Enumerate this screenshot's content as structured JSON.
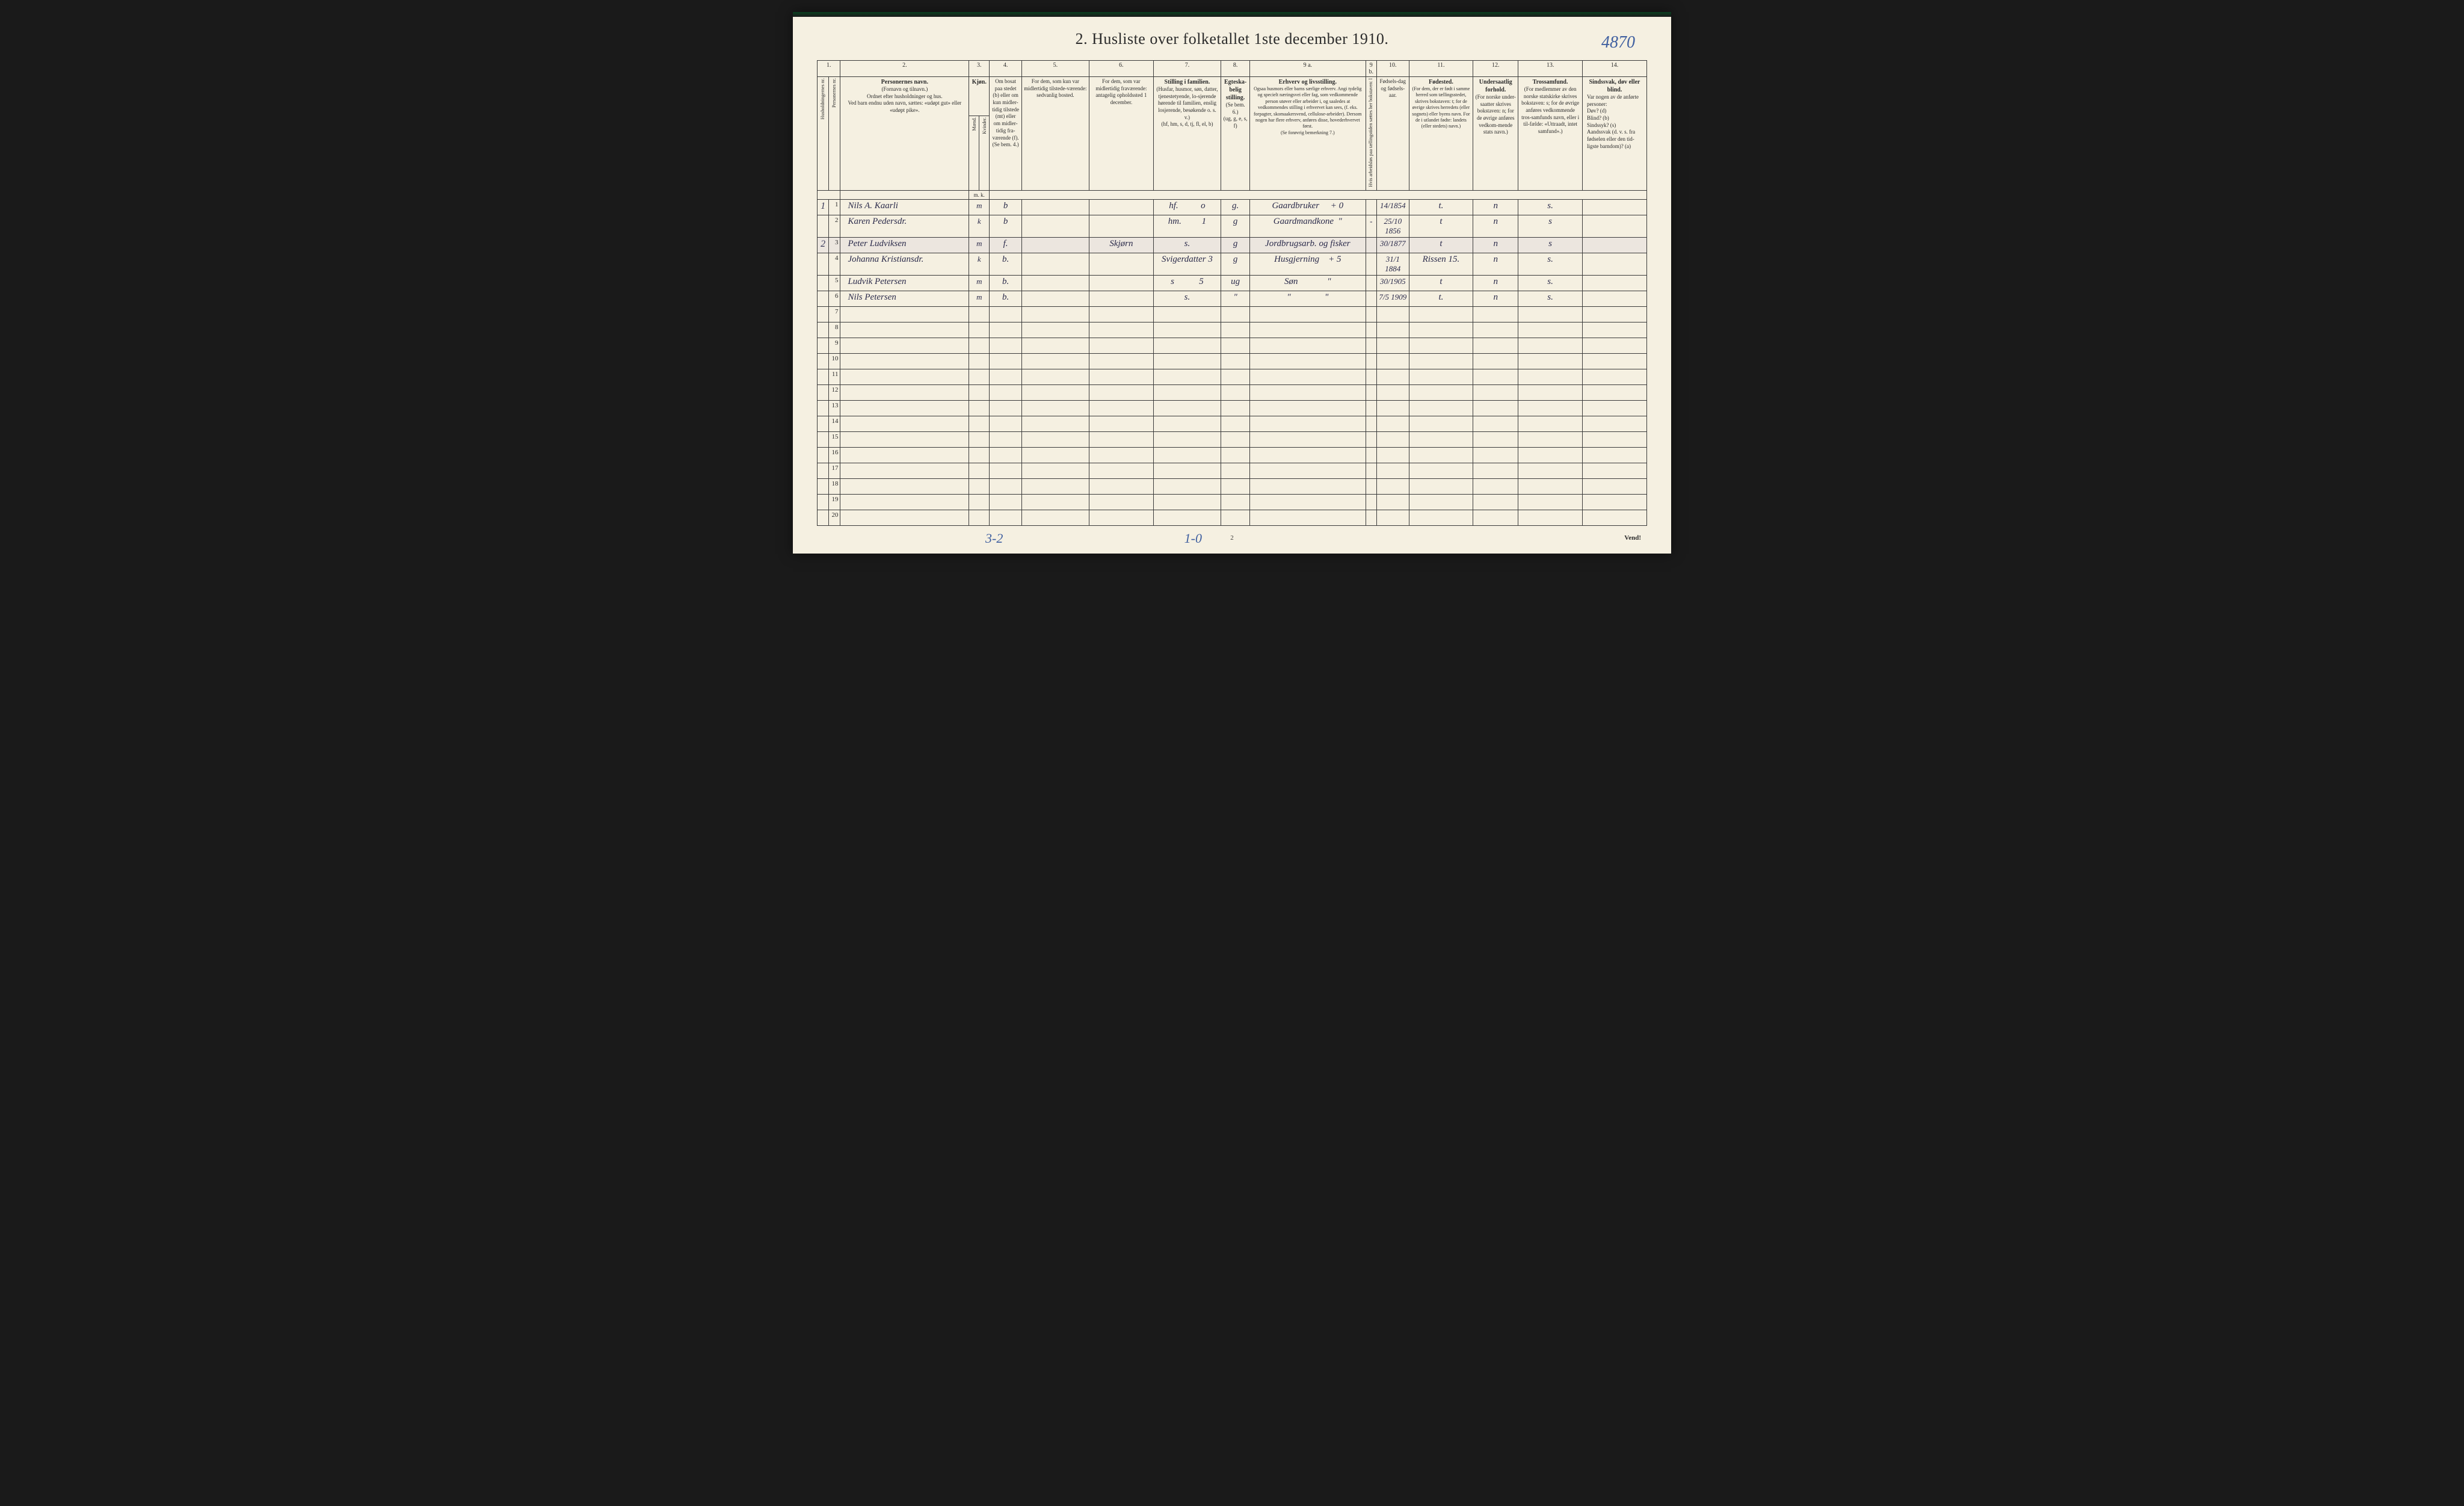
{
  "document": {
    "title": "2.  Husliste over folketallet 1ste december 1910.",
    "top_annotation": "4870",
    "page_number": "2",
    "vend_label": "Vend!",
    "bottom_left_annotation": "3-2",
    "bottom_center_annotation": "1-0"
  },
  "columns": {
    "nums": [
      "1.",
      "2.",
      "3.",
      "4.",
      "5.",
      "6.",
      "7.",
      "8.",
      "9 a.",
      "9 b.",
      "10.",
      "11.",
      "12.",
      "13.",
      "14."
    ],
    "col1_a": "Husholdningernes nr.",
    "col1_b": "Personernes nr.",
    "col2_main": "Personernes navn.",
    "col2_sub": "(Fornavn og tilnavn.)\nOrdnet efter husholdninger og hus.\nVed barn endnu uden navn, sættes: «udøpt gut» eller «udøpt pike».",
    "col3_main": "Kjøn.",
    "col3_a": "Mænd.",
    "col3_b": "Kvinder.",
    "col3_sub": "m.  k.",
    "col4": "Om bosat paa stedet (b) eller om kun midler-tidig tilstede (mt) eller om midler-tidig fra-værende (f).\n(Se bem. 4.)",
    "col5": "For dem, som kun var midlertidig tilstede-værende:\nsedvanlig bosted.",
    "col6": "For dem, som var midlertidig fraværende:\nantagelig opholdssted 1 december.",
    "col7_main": "Stilling i familien.",
    "col7_sub": "(Husfar, husmor, søn, datter, tjenestetyende, lo-sjerende hørende til familien, enslig losjerende, besøkende o. s. v.)\n(hf, hm, s, d, tj, fl, el, b)",
    "col8_main": "Egteska-belig stilling.",
    "col8_sub": "(Se bem. 6.)\n(ug, g, e, s, f)",
    "col9a_main": "Erhverv og livsstilling.",
    "col9a_sub": "Ogsaa husmors eller barns særlige erhverv. Angi tydelig og specielt næringsvei eller fag, som vedkommende person utøver eller arbeider i, og saaledes at vedkommendes stilling i erhvervet kan sees, (f. eks. forpagter, skomaakersvend, cellulose-arbeider). Dersom nogen har flere erhverv, anføres disse, hovederhvervet først.\n(Se forøvrig bemerkning 7.)",
    "col9b": "Hvis arbeidsløs paa tællingstiden sættes her bokstaven: l",
    "col10": "Fødsels-dag og fødsels-aar.",
    "col11_main": "Fødested.",
    "col11_sub": "(For dem, der er født i samme herred som tællingsstedet, skrives bokstaven: t; for de øvrige skrives herredets (eller sognets) eller byens navn. For de i utlandet fødte: landets (eller stedets) navn.)",
    "col12_main": "Undersaatlig forhold.",
    "col12_sub": "(For norske under-saatter skrives bokstaven: n; for de øvrige anføres vedkom-mende stats navn.)",
    "col13_main": "Trossamfund.",
    "col13_sub": "(For medlemmer av den norske statskirke skrives bokstaven: s; for de øvrige anføres vedkommende tros-samfunds navn, eller i til-fælde: «Uttraadt, intet samfund».)",
    "col14_main": "Sindssvak, døv eller blind.",
    "col14_sub": "Var nogen av de anførte personer:\nDøv?         (d)\nBlind?       (b)\nSindssyk?  (s)\nAandssvak (d. v. s. fra fødselen eller den tid-ligste barndom)? (a)"
  },
  "rows": [
    {
      "household": "1",
      "person": "1",
      "name": "Nils A. Kaarli",
      "sex": "m",
      "residence": "b",
      "temp_present": "",
      "temp_absent": "",
      "family_pos": "hf.          o",
      "marital": "g.",
      "occupation": "Gaardbruker     + 0",
      "unemployed": "",
      "birth": "14/1854",
      "birthplace": "t.",
      "nationality": "n",
      "religion": "s.",
      "disability": ""
    },
    {
      "household": "",
      "person": "2",
      "name": "Karen Pedersdr.",
      "sex": "k",
      "residence": "b",
      "temp_present": "",
      "temp_absent": "",
      "family_pos": "hm.         1",
      "marital": "g",
      "occupation": "Gaardmandkone  \"",
      "unemployed": "-",
      "birth": "25/10 1856",
      "birthplace": "t",
      "nationality": "n",
      "religion": "s",
      "disability": ""
    },
    {
      "household": "2",
      "person": "3",
      "name": "Peter Ludviksen",
      "sex": "m",
      "residence": "f.",
      "temp_present": "",
      "temp_absent": "Skjørn",
      "family_pos": "s.",
      "marital": "g",
      "occupation": "Jordbrugsarb. og fisker",
      "unemployed": "",
      "birth": "30/1877",
      "birthplace": "t",
      "nationality": "n",
      "religion": "s",
      "disability": ""
    },
    {
      "household": "",
      "person": "4",
      "name": "Johanna Kristiansdr.",
      "sex": "k",
      "residence": "b.",
      "temp_present": "",
      "temp_absent": "",
      "family_pos": "Svigerdatter 3",
      "marital": "g",
      "occupation": "Husgjerning    + 5",
      "unemployed": "",
      "birth": "31/1 1884",
      "birthplace": "Rissen 15.",
      "nationality": "n",
      "religion": "s.",
      "disability": ""
    },
    {
      "household": "",
      "person": "5",
      "name": "Ludvik Petersen",
      "sex": "m",
      "residence": "b.",
      "temp_present": "",
      "temp_absent": "",
      "family_pos": "s           5",
      "marital": "ug",
      "occupation": "Søn             \"",
      "unemployed": "",
      "birth": "30/1905",
      "birthplace": "t",
      "nationality": "n",
      "religion": "s.",
      "disability": ""
    },
    {
      "household": "",
      "person": "6",
      "name": "Nils Petersen",
      "sex": "m",
      "residence": "b.",
      "temp_present": "",
      "temp_absent": "",
      "family_pos": "s.",
      "marital": "\"",
      "occupation": "\"               \"",
      "unemployed": "",
      "birth": "7/5 1909",
      "birthplace": "t.",
      "nationality": "n",
      "religion": "s.",
      "disability": ""
    }
  ],
  "empty_row_nums": [
    "7",
    "8",
    "9",
    "10",
    "11",
    "12",
    "13",
    "14",
    "15",
    "16",
    "17",
    "18",
    "19",
    "20"
  ],
  "styling": {
    "page_bg": "#f5f0e1",
    "border_color": "#3a3a3a",
    "text_color": "#2a2a2a",
    "handwriting_color": "#2a2a4a",
    "annotation_color": "#4060a0",
    "title_fontsize": 26,
    "header_fontsize": 9,
    "data_fontsize": 15
  }
}
